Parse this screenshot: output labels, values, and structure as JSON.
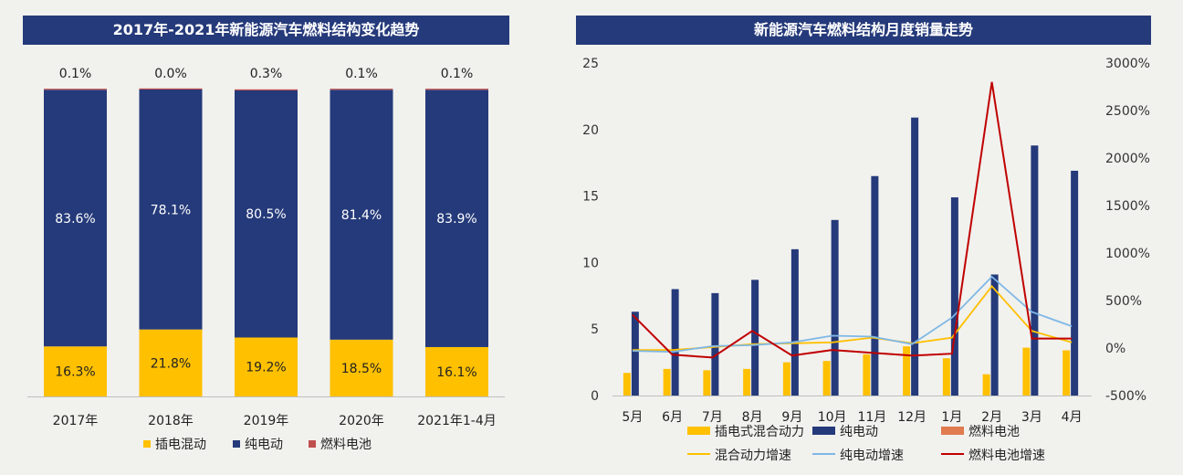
{
  "colors": {
    "navy": "#253a7a",
    "yellow": "#ffc000",
    "red": "#c0504d",
    "orange": "#e07a4f",
    "lightblue": "#7fb8e6",
    "darkred": "#c00000",
    "bg": "#f1f1ee"
  },
  "left": {
    "title": "2017年-2021年新能源汽车燃料结构变化趋势",
    "legend": [
      "插电混动",
      "纯电动",
      "燃料电池"
    ]
  },
  "right": {
    "title": "新能源汽车燃料结构月度销量走势",
    "legend_row1": [
      "插电式混合动力",
      "纯电动",
      "燃料电池"
    ],
    "legend_row2": [
      "混合动力增速",
      "纯电动增速",
      "燃料电池增速"
    ]
  },
  "chart_data": [
    {
      "type": "bar",
      "stacked": true,
      "percent_stacked": true,
      "title": "2017年-2021年新能源汽车燃料结构变化趋势",
      "categories": [
        "2017年",
        "2018年",
        "2019年",
        "2020年",
        "2021年1-4月"
      ],
      "series": [
        {
          "name": "插电混动",
          "values": [
            16.3,
            21.8,
            19.2,
            18.5,
            16.1
          ],
          "labels": [
            "16.3%",
            "21.8%",
            "19.2%",
            "18.5%",
            "16.1%"
          ]
        },
        {
          "name": "纯电动",
          "values": [
            83.6,
            78.1,
            80.5,
            81.4,
            83.9
          ],
          "labels": [
            "83.6%",
            "78.1%",
            "80.5%",
            "81.4%",
            "83.9%"
          ]
        },
        {
          "name": "燃料电池",
          "values": [
            0.1,
            0.0,
            0.3,
            0.1,
            0.1
          ],
          "labels": [
            "0.1%",
            "0.0%",
            "0.3%",
            "0.1%",
            "0.1%"
          ]
        }
      ],
      "legend_position": "bottom"
    },
    {
      "type": "bar+line",
      "title": "新能源汽车燃料结构月度销量走势",
      "categories": [
        "5月",
        "6月",
        "7月",
        "8月",
        "9月",
        "10月",
        "11月",
        "12月",
        "1月",
        "2月",
        "3月",
        "4月"
      ],
      "bar_series": [
        {
          "name": "插电式混合动力",
          "values": [
            1.7,
            2.0,
            1.9,
            2.0,
            2.5,
            2.6,
            3.1,
            3.7,
            2.8,
            1.6,
            3.6,
            3.4
          ]
        },
        {
          "name": "纯电动",
          "values": [
            6.3,
            8.0,
            7.7,
            8.7,
            11.0,
            13.2,
            16.5,
            20.9,
            14.9,
            9.1,
            18.8,
            16.9
          ]
        },
        {
          "name": "燃料电池",
          "values": [
            0,
            0,
            0,
            0,
            0,
            0,
            0,
            0,
            0,
            0,
            0,
            0
          ]
        }
      ],
      "line_series": [
        {
          "name": "混合动力增速",
          "values": [
            -20,
            -20,
            10,
            40,
            50,
            60,
            110,
            50,
            110,
            650,
            180,
            60
          ]
        },
        {
          "name": "纯电动增速",
          "values": [
            -30,
            -40,
            20,
            30,
            60,
            130,
            120,
            40,
            320,
            750,
            380,
            230
          ]
        },
        {
          "name": "燃料电池增速",
          "values": [
            350,
            -70,
            -100,
            180,
            -80,
            -20,
            -50,
            -80,
            -60,
            2800,
            100,
            100
          ]
        }
      ],
      "y_left": {
        "range": [
          0,
          25
        ],
        "ticks": [
          "0",
          "5",
          "10",
          "15",
          "20",
          "25"
        ]
      },
      "y_right": {
        "range": [
          -500,
          3000
        ],
        "ticks": [
          "-500%",
          "0%",
          "500%",
          "1000%",
          "1500%",
          "2000%",
          "2500%",
          "3000%"
        ]
      },
      "grid": false,
      "legend_position": "bottom"
    }
  ]
}
